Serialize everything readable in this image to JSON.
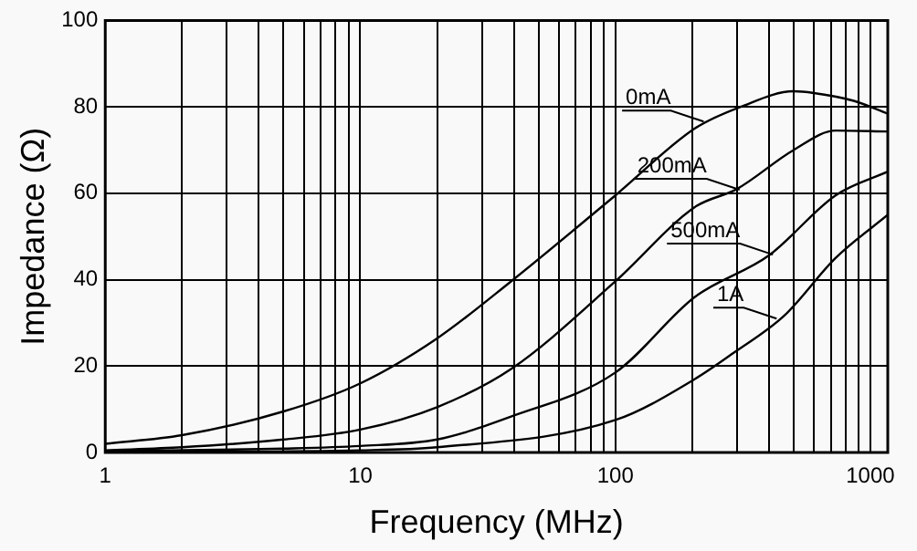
{
  "chart_data": {
    "type": "line",
    "xlabel": "Frequency (MHz)",
    "ylabel": "Impedance (Ω)",
    "log": "x",
    "grid": true,
    "legend": false,
    "marker": "none",
    "line_style": "solid",
    "xlim": [
      1,
      1170
    ],
    "ylim": [
      0,
      100
    ],
    "xticks": [
      1,
      {
        "value": 2,
        "label": null
      },
      {
        "value": 3,
        "label": null
      },
      {
        "value": 4,
        "label": null
      },
      {
        "value": 5,
        "label": null
      },
      {
        "value": 6,
        "label": null
      },
      {
        "value": 7,
        "label": null
      },
      {
        "value": 8,
        "label": null
      },
      {
        "value": 9,
        "label": null
      },
      10,
      {
        "value": 20,
        "label": null
      },
      {
        "value": 30,
        "label": null
      },
      {
        "value": 40,
        "label": null
      },
      {
        "value": 50,
        "label": null
      },
      {
        "value": 60,
        "label": null
      },
      {
        "value": 70,
        "label": null
      },
      {
        "value": 80,
        "label": null
      },
      {
        "value": 90,
        "label": null
      },
      100,
      {
        "value": 200,
        "label": null
      },
      {
        "value": 300,
        "label": null
      },
      {
        "value": 400,
        "label": null
      },
      {
        "value": 500,
        "label": null
      },
      {
        "value": 600,
        "label": null
      },
      {
        "value": 700,
        "label": null
      },
      {
        "value": 800,
        "label": null
      },
      {
        "value": 900,
        "label": null
      },
      1000
    ],
    "yticks": [
      0,
      20,
      40,
      60,
      80,
      100
    ],
    "series": [
      {
        "color": "#000000",
        "x": [
          1,
          2,
          5,
          10,
          20,
          39,
          100,
          205,
          310,
          500,
          600,
          860,
          1170
        ],
        "values": [
          2,
          4,
          9.5,
          16,
          26.4,
          39.6,
          59.5,
          75,
          80,
          83.6,
          83.2,
          81.4,
          78.4
        ]
      },
      {
        "color": "#000000",
        "x": [
          1,
          2,
          5,
          10,
          20,
          39,
          100,
          205,
          300,
          500,
          730,
          1170
        ],
        "values": [
          0.5,
          1.2,
          3,
          5.3,
          10.5,
          19.3,
          39.6,
          56.8,
          61,
          70,
          74.5,
          74.3
        ]
      },
      {
        "color": "#000000",
        "x": [
          1,
          5,
          10,
          20,
          39,
          100,
          205,
          400,
          730,
          1170
        ],
        "values": [
          0.3,
          0.9,
          1.5,
          3,
          8.3,
          18.5,
          36,
          45.6,
          59.5,
          65
        ]
      },
      {
        "color": "#000000",
        "x": [
          1,
          10,
          20,
          100,
          205,
          290,
          460,
          730,
          1170
        ],
        "values": [
          0.1,
          0.5,
          1.2,
          7.5,
          17,
          23,
          31.7,
          45,
          55
        ]
      }
    ],
    "annotations": [
      {
        "text": "0mA",
        "x": 222,
        "y": 76.6
      },
      {
        "text": "200mA",
        "x": 307,
        "y": 60.8
      },
      {
        "text": "500mA",
        "x": 415,
        "y": 45.8
      },
      {
        "text": "1A",
        "x": 429,
        "y": 31
      }
    ]
  }
}
